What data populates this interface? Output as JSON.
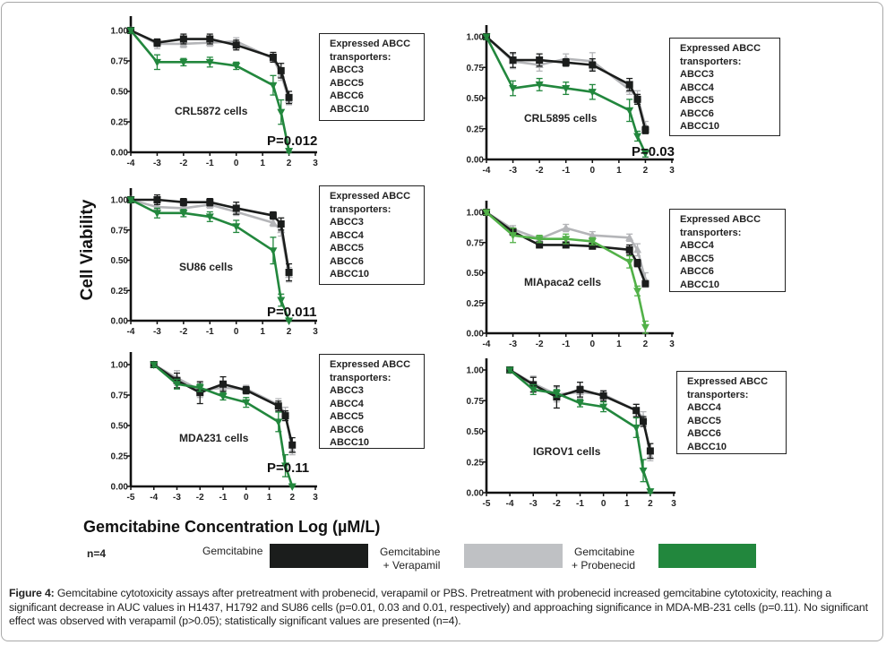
{
  "figure": {
    "y_axis_label": "Cell Viability",
    "x_axis_label": "Gemcitabine Concentration Log (µM/L)",
    "n_label": "n=4",
    "legend_heading": "Expressed ABCC",
    "legend_subheading": "transporters:",
    "key": [
      {
        "label_line1": "Gemcitabine",
        "label_line2": "",
        "color": "#1b1d1c"
      },
      {
        "label_line1": "Gemcitabine",
        "label_line2": "+ Verapamil",
        "color": "#bfc1c4"
      },
      {
        "label_line1": "Gemcitabine",
        "label_line2": "+ Probenecid",
        "color": "#22873d"
      }
    ],
    "caption_bold": "Figure 4:",
    "caption_text": " Gemcitabine cytotoxicity assays after pretreatment with probenecid, verapamil or PBS.  Pretreatment with probenecid increased gemcitabine cytotoxicity, reaching a significant decrease in AUC values in H1437, H1792 and SU86 cells (p=0.01, 0.03 and 0.01, respectively) and approaching significance in MDA-MB-231 cells (p=0.11).  No significant effect was observed with verapamil (p>0.05); statistically significant values are presented (n=4)."
  },
  "chart_data": [
    {
      "type": "line",
      "title": "CRL5872 cells",
      "p_value": "P=0.012",
      "transporters": [
        "ABCC3",
        "ABCC5",
        "ABCC6",
        "ABCC10"
      ],
      "xlabel": "Gemcitabine Concentration Log (µM/L)",
      "ylabel": "Cell Viability",
      "xlim": [
        -4,
        3
      ],
      "ylim": [
        0,
        1.0
      ],
      "xticks": [
        -4,
        -3,
        -2,
        -1,
        0,
        1,
        2,
        3
      ],
      "yticks": [
        "0.00",
        "0.25",
        "0.50",
        "0.75",
        "1.00"
      ],
      "x": [
        -4,
        -3,
        -2,
        -1,
        0,
        1.4,
        1.7,
        2
      ],
      "series": [
        {
          "name": "Gemcitabine",
          "color": "#1b1d1c",
          "values": [
            1.0,
            0.9,
            0.93,
            0.93,
            0.88,
            0.78,
            0.67,
            0.45
          ],
          "err": [
            0.02,
            0.03,
            0.04,
            0.04,
            0.04,
            0.04,
            0.06,
            0.05
          ]
        },
        {
          "name": "Gemcitabine + Verapamil",
          "color": "#b4b5b8",
          "values": [
            1.0,
            0.89,
            0.89,
            0.9,
            0.91,
            0.77,
            0.64,
            0.43
          ],
          "err": [
            0.02,
            0.04,
            0.03,
            0.03,
            0.03,
            0.03,
            0.05,
            0.04
          ]
        },
        {
          "name": "Gemcitabine + Probenecid",
          "color": "#22873d",
          "values": [
            1.0,
            0.74,
            0.74,
            0.74,
            0.71,
            0.55,
            0.33,
            0.01
          ],
          "err": [
            0.02,
            0.06,
            0.03,
            0.04,
            0.03,
            0.08,
            0.1,
            0.02
          ]
        }
      ]
    },
    {
      "type": "line",
      "title": "CRL5895 cells",
      "p_value": "P=0.03",
      "transporters": [
        "ABCC3",
        "ABCC4",
        "ABCC5",
        "ABCC6",
        "ABCC10"
      ],
      "xlabel": "Gemcitabine Concentration Log (µM/L)",
      "ylabel": "Cell Viability",
      "xlim": [
        -4,
        3
      ],
      "ylim": [
        0,
        1.0
      ],
      "xticks": [
        -4,
        -3,
        -2,
        -1,
        0,
        1,
        2,
        3
      ],
      "yticks": [
        "0.00",
        "0.25",
        "0.50",
        "0.75",
        "1.00"
      ],
      "x": [
        -4,
        -3,
        -2,
        -1,
        0,
        1.4,
        1.7,
        2
      ],
      "series": [
        {
          "name": "Gemcitabine",
          "color": "#1b1d1c",
          "values": [
            1.0,
            0.81,
            0.81,
            0.79,
            0.77,
            0.61,
            0.49,
            0.24
          ],
          "err": [
            0.02,
            0.06,
            0.05,
            0.03,
            0.05,
            0.05,
            0.04,
            0.03
          ]
        },
        {
          "name": "Gemcitabine + Verapamil",
          "color": "#b4b5b8",
          "values": [
            1.0,
            0.8,
            0.77,
            0.82,
            0.8,
            0.57,
            0.51,
            0.27
          ],
          "err": [
            0.02,
            0.06,
            0.05,
            0.04,
            0.07,
            0.04,
            0.05,
            0.04
          ]
        },
        {
          "name": "Gemcitabine + Probenecid",
          "color": "#22873d",
          "values": [
            1.0,
            0.58,
            0.61,
            0.58,
            0.55,
            0.4,
            0.19,
            0.05
          ],
          "err": [
            0.02,
            0.06,
            0.05,
            0.05,
            0.06,
            0.09,
            0.04,
            0.03
          ]
        }
      ]
    },
    {
      "type": "line",
      "title": "SU86 cells",
      "p_value": "P=0.011",
      "transporters": [
        "ABCC3",
        "ABCC4",
        "ABCC5",
        "ABCC6",
        "ABCC10"
      ],
      "xlabel": "Gemcitabine Concentration Log (µM/L)",
      "ylabel": "Cell Viability",
      "xlim": [
        -4,
        3
      ],
      "ylim": [
        0,
        1.0
      ],
      "xticks": [
        -4,
        -3,
        -2,
        -1,
        0,
        1,
        2,
        3
      ],
      "yticks": [
        "0.00",
        "0.25",
        "0.50",
        "0.75",
        "1.00"
      ],
      "x": [
        -4,
        -3,
        -2,
        -1,
        0,
        1.4,
        1.7,
        2
      ],
      "series": [
        {
          "name": "Gemcitabine",
          "color": "#1b1d1c",
          "values": [
            1.0,
            1.0,
            0.98,
            0.98,
            0.93,
            0.87,
            0.8,
            0.4
          ],
          "err": [
            0.02,
            0.04,
            0.03,
            0.03,
            0.05,
            0.03,
            0.05,
            0.07
          ]
        },
        {
          "name": "Gemcitabine + Verapamil",
          "color": "#b4b5b8",
          "values": [
            1.0,
            0.94,
            0.93,
            0.96,
            0.9,
            0.81,
            0.75,
            0.38
          ],
          "err": [
            0.02,
            0.03,
            0.03,
            0.03,
            0.03,
            0.03,
            0.05,
            0.06
          ]
        },
        {
          "name": "Gemcitabine + Probenecid",
          "color": "#22873d",
          "values": [
            1.0,
            0.89,
            0.89,
            0.86,
            0.78,
            0.58,
            0.17,
            0.0
          ],
          "err": [
            0.02,
            0.04,
            0.03,
            0.04,
            0.05,
            0.11,
            0.05,
            0.02
          ]
        }
      ]
    },
    {
      "type": "line",
      "title": "MIApaca2 cells",
      "p_value": "",
      "transporters": [
        "ABCC4",
        "ABCC5",
        "ABCC6",
        "ABCC10"
      ],
      "xlabel": "Gemcitabine Concentration Log (µM/L)",
      "ylabel": "Cell Viability",
      "xlim": [
        -4,
        3
      ],
      "ylim": [
        0,
        1.0
      ],
      "xticks": [
        -4,
        -3,
        -2,
        -1,
        0,
        1,
        2,
        3
      ],
      "yticks": [
        "0.00",
        "0.25",
        "0.50",
        "0.75",
        "1.00"
      ],
      "x": [
        -4,
        -3,
        -2,
        -1,
        0,
        1.4,
        1.7,
        2
      ],
      "series": [
        {
          "name": "Gemcitabine",
          "color": "#1b1d1c",
          "values": [
            1.0,
            0.84,
            0.73,
            0.73,
            0.72,
            0.69,
            0.58,
            0.41
          ],
          "err": [
            0.02,
            0.03,
            0.02,
            0.02,
            0.02,
            0.04,
            0.03,
            0.02
          ]
        },
        {
          "name": "Gemcitabine + Verapamil",
          "color": "#b4b5b8",
          "values": [
            1.0,
            0.86,
            0.78,
            0.87,
            0.81,
            0.79,
            0.69,
            0.44
          ],
          "err": [
            0.02,
            0.03,
            0.02,
            0.03,
            0.03,
            0.03,
            0.05,
            0.06
          ]
        },
        {
          "name": "Gemcitabine + Probenecid",
          "color": "#52b148",
          "values": [
            1.0,
            0.81,
            0.78,
            0.78,
            0.76,
            0.59,
            0.35,
            0.05
          ],
          "err": [
            0.02,
            0.06,
            0.03,
            0.04,
            0.03,
            0.05,
            0.04,
            0.05
          ]
        }
      ]
    },
    {
      "type": "line",
      "title": "MDA231 cells",
      "p_value": "P=0.11",
      "transporters": [
        "ABCC3",
        "ABCC4",
        "ABCC5",
        "ABCC6",
        "ABCC10"
      ],
      "xlabel": "Gemcitabine Concentration Log (µM/L)",
      "ylabel": "Cell Viability",
      "xlim": [
        -5,
        3
      ],
      "ylim": [
        0,
        1.0
      ],
      "xticks": [
        -5,
        -4,
        -3,
        -2,
        -1,
        0,
        1,
        2,
        3
      ],
      "yticks": [
        "0.00",
        "0.25",
        "0.50",
        "0.75",
        "1.00"
      ],
      "x": [
        -4,
        -3,
        -2,
        -1,
        0,
        1.4,
        1.7,
        2
      ],
      "series": [
        {
          "name": "Gemcitabine",
          "color": "#1b1d1c",
          "values": [
            1.0,
            0.87,
            0.77,
            0.84,
            0.79,
            0.66,
            0.58,
            0.34
          ],
          "err": [
            0.02,
            0.06,
            0.09,
            0.06,
            0.03,
            0.04,
            0.04,
            0.06
          ]
        },
        {
          "name": "Gemcitabine + Verapamil",
          "color": "#b4b5b8",
          "values": [
            1.0,
            0.89,
            0.79,
            0.81,
            0.8,
            0.67,
            0.6,
            0.3
          ],
          "err": [
            0.02,
            0.06,
            0.06,
            0.05,
            0.03,
            0.05,
            0.05,
            0.04
          ]
        },
        {
          "name": "Gemcitabine + Probenecid",
          "color": "#22873d",
          "values": [
            1.0,
            0.84,
            0.81,
            0.74,
            0.69,
            0.53,
            0.17,
            0.0
          ],
          "err": [
            0.02,
            0.04,
            0.03,
            0.03,
            0.04,
            0.08,
            0.09,
            0.02
          ]
        }
      ]
    },
    {
      "type": "line",
      "title": "IGROV1 cells",
      "p_value": "",
      "transporters": [
        "ABCC4",
        "ABCC5",
        "ABCC6",
        "ABCC10"
      ],
      "xlabel": "Gemcitabine Concentration Log (µM/L)",
      "ylabel": "Cell Viability",
      "xlim": [
        -5,
        3
      ],
      "ylim": [
        0,
        1.0
      ],
      "xticks": [
        -5,
        -4,
        -3,
        -2,
        -1,
        0,
        1,
        2,
        3
      ],
      "yticks": [
        "0.00",
        "0.25",
        "0.50",
        "0.75",
        "1.00"
      ],
      "x": [
        -4,
        -3,
        -2,
        -1,
        0,
        1.4,
        1.7,
        2
      ],
      "series": [
        {
          "name": "Gemcitabine",
          "color": "#1b1d1c",
          "values": [
            1.0,
            0.88,
            0.78,
            0.84,
            0.79,
            0.67,
            0.58,
            0.34
          ],
          "err": [
            0.02,
            0.06,
            0.09,
            0.06,
            0.04,
            0.05,
            0.04,
            0.06
          ]
        },
        {
          "name": "Gemcitabine + Verapamil",
          "color": "#b4b5b8",
          "values": [
            1.0,
            0.89,
            0.8,
            0.82,
            0.8,
            0.67,
            0.61,
            0.3
          ],
          "err": [
            0.02,
            0.06,
            0.06,
            0.05,
            0.03,
            0.05,
            0.05,
            0.04
          ]
        },
        {
          "name": "Gemcitabine + Probenecid",
          "color": "#22873d",
          "values": [
            1.0,
            0.84,
            0.81,
            0.73,
            0.7,
            0.53,
            0.18,
            0.01
          ],
          "err": [
            0.02,
            0.04,
            0.03,
            0.03,
            0.04,
            0.08,
            0.09,
            0.02
          ]
        }
      ]
    }
  ]
}
